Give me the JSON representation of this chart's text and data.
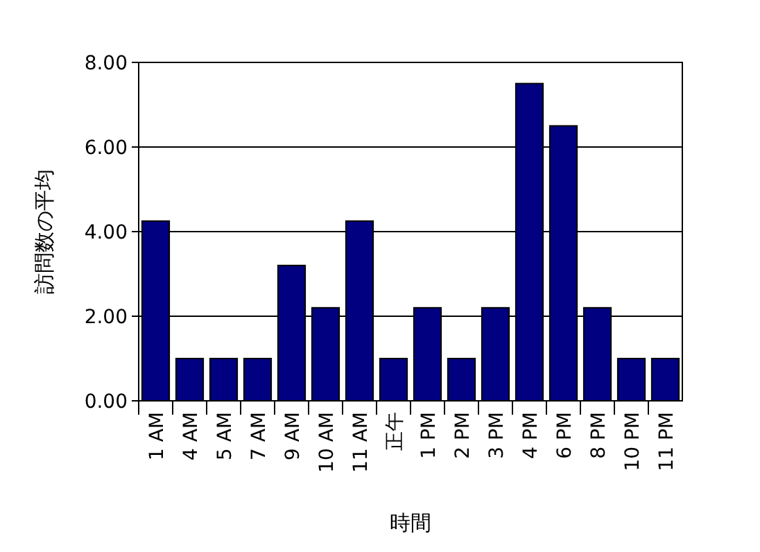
{
  "chart_data": {
    "type": "bar",
    "xlabel": "時間",
    "ylabel": "訪問数の平均",
    "categories": [
      "1 AM",
      "4 AM",
      "5 AM",
      "7 AM",
      "9 AM",
      "10 AM",
      "11 AM",
      "正午",
      "1 PM",
      "2 PM",
      "3 PM",
      "4 PM",
      "6 PM",
      "8 PM",
      "10 PM",
      "11 PM"
    ],
    "values": [
      4.25,
      1.0,
      1.0,
      1.0,
      3.2,
      2.2,
      4.25,
      1.0,
      2.2,
      1.0,
      2.2,
      7.5,
      6.5,
      2.2,
      1.0,
      1.0
    ],
    "color": "#000080",
    "ylim": [
      0,
      8
    ],
    "yticks": [
      {
        "value": 0,
        "label": "0.00"
      },
      {
        "value": 2,
        "label": "2.00"
      },
      {
        "value": 4,
        "label": "4.00"
      },
      {
        "value": 6,
        "label": "6.00"
      },
      {
        "value": 8,
        "label": "8.00"
      }
    ],
    "grid": "y"
  }
}
